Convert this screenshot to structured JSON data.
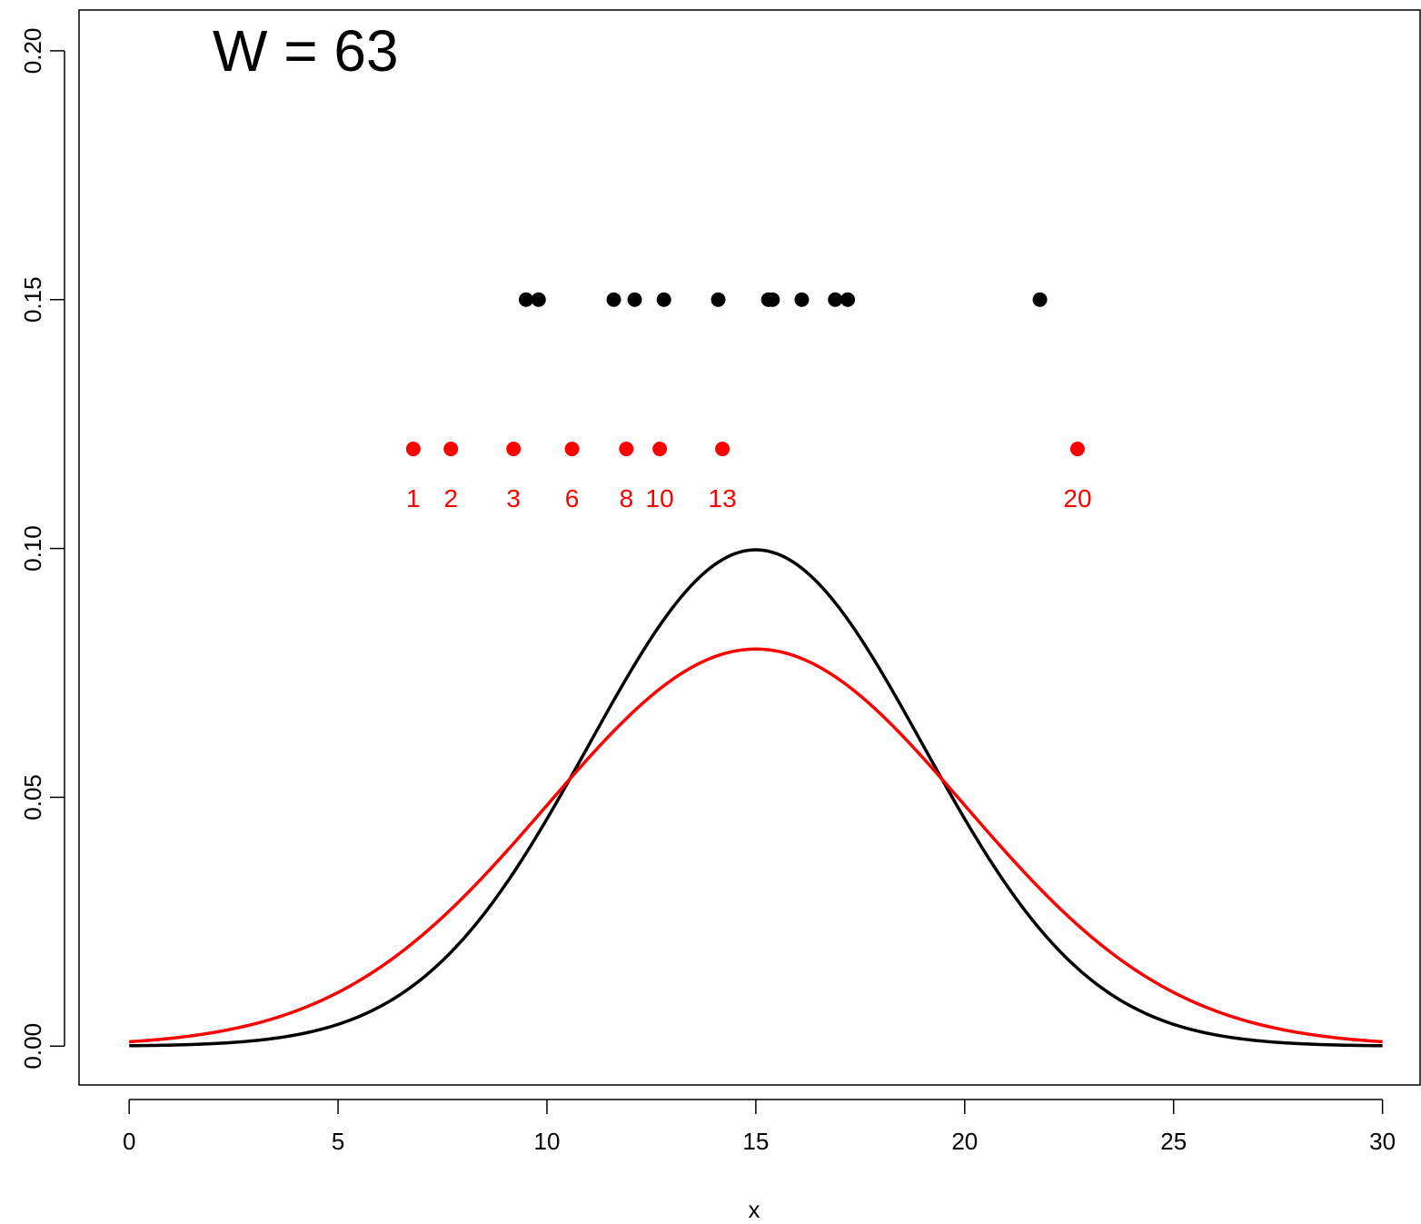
{
  "chart_data": {
    "type": "scatter",
    "annotation": "W = 63",
    "xlabel": "x",
    "ylabel": "",
    "xlim": [
      -1.2,
      30.9
    ],
    "ylim": [
      -0.0078,
      0.2082
    ],
    "x_ticks": [
      0,
      5,
      10,
      15,
      20,
      25,
      30
    ],
    "x_tick_labels": [
      "0",
      "5",
      "10",
      "15",
      "20",
      "25",
      "30"
    ],
    "y_ticks": [
      0,
      0.05,
      0.1,
      0.15,
      0.2
    ],
    "y_tick_labels": [
      "0.00",
      "0.05",
      "0.10",
      "0.15",
      "0.20"
    ],
    "colors": {
      "black": "#000000",
      "red": "#ff0000"
    },
    "series": [
      {
        "color": "black",
        "kind": "density",
        "mean": 15,
        "sd": 4,
        "x_range": [
          0,
          30
        ]
      },
      {
        "color": "red",
        "kind": "density",
        "mean": 15,
        "sd": 5,
        "x_range": [
          0,
          30
        ]
      },
      {
        "color": "black",
        "kind": "points",
        "y": 0.15,
        "x": [
          9.5,
          9.8,
          11.6,
          12.1,
          12.8,
          14.1,
          15.3,
          15.4,
          16.1,
          16.9,
          17.2,
          21.8
        ]
      },
      {
        "color": "red",
        "kind": "points",
        "y": 0.12,
        "x": [
          6.8,
          7.7,
          9.2,
          10.6,
          11.9,
          12.7,
          14.2,
          22.7
        ],
        "labels": [
          "1",
          "2",
          "3",
          "6",
          "8",
          "10",
          "13",
          "20"
        ],
        "label_y": 0.11
      }
    ]
  }
}
